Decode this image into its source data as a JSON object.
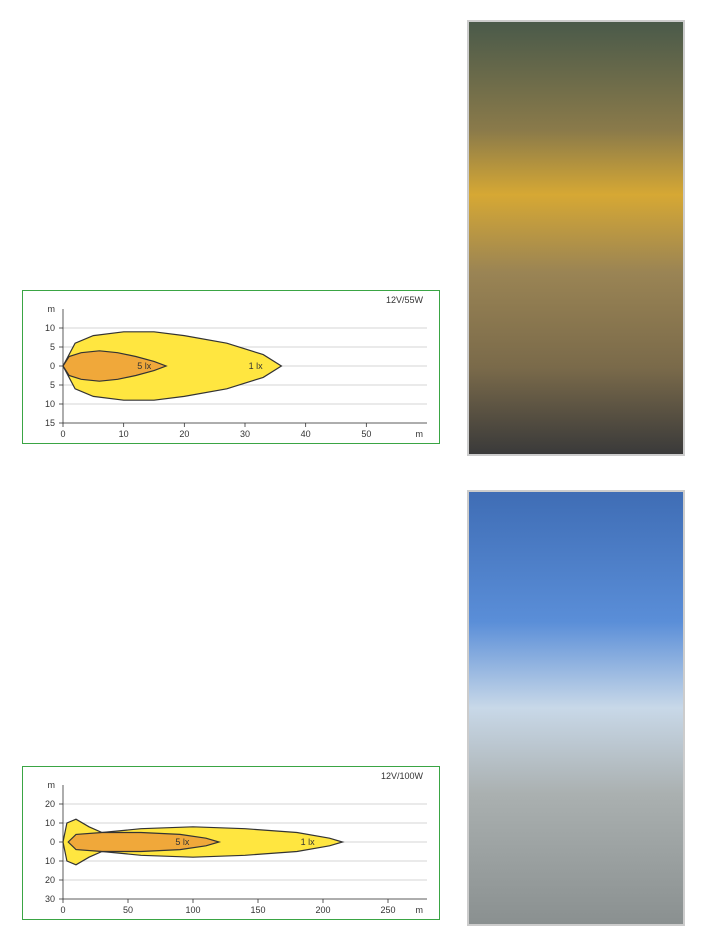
{
  "chart1": {
    "type": "beam-distribution",
    "title": "12V/55W",
    "x_unit": "m",
    "y_unit": "m",
    "xlim": [
      0,
      60
    ],
    "ylim": [
      -15,
      15
    ],
    "xticks": [
      0,
      10,
      20,
      30,
      40,
      50
    ],
    "yticks": [
      -15,
      -10,
      -5,
      0,
      5,
      10
    ],
    "yticklabels": [
      "15",
      "10",
      "5",
      "0",
      "5",
      "10"
    ],
    "y_axis_top_label": "m",
    "border_color": "#3aa544",
    "background_color": "#ffffff",
    "outer_beam": {
      "label": "1 lx",
      "label_pos": "right",
      "fill": "#ffe640",
      "stroke": "#333333",
      "points": [
        [
          0,
          0
        ],
        [
          2,
          6
        ],
        [
          5,
          8
        ],
        [
          10,
          9
        ],
        [
          15,
          9
        ],
        [
          20,
          8
        ],
        [
          27,
          6
        ],
        [
          33,
          3
        ],
        [
          36,
          0
        ],
        [
          33,
          -3
        ],
        [
          27,
          -6
        ],
        [
          20,
          -8
        ],
        [
          15,
          -9
        ],
        [
          10,
          -9
        ],
        [
          5,
          -8
        ],
        [
          2,
          -6
        ]
      ]
    },
    "inner_beam": {
      "label": "5 lx",
      "label_pos": "mid",
      "fill": "#f0a83a",
      "stroke": "#333333",
      "points": [
        [
          0,
          0
        ],
        [
          1,
          2.5
        ],
        [
          3,
          3.5
        ],
        [
          6,
          4
        ],
        [
          9,
          3.5
        ],
        [
          12,
          2.5
        ],
        [
          15,
          1.2
        ],
        [
          17,
          0
        ],
        [
          15,
          -1.2
        ],
        [
          12,
          -2.5
        ],
        [
          9,
          -3.5
        ],
        [
          6,
          -4
        ],
        [
          3,
          -3.5
        ],
        [
          1,
          -2.5
        ]
      ]
    },
    "tick_fontsize": 9,
    "title_fontsize": 9
  },
  "chart2": {
    "type": "beam-distribution",
    "title": "12V/100W",
    "x_unit": "m",
    "y_unit": "m",
    "xlim": [
      0,
      280
    ],
    "ylim": [
      -30,
      30
    ],
    "xticks": [
      0,
      50,
      100,
      150,
      200,
      250
    ],
    "yticks": [
      -30,
      -20,
      -10,
      0,
      10,
      20
    ],
    "yticklabels": [
      "30",
      "20",
      "10",
      "0",
      "10",
      "20"
    ],
    "y_axis_top_label": "m",
    "border_color": "#3aa544",
    "background_color": "#ffffff",
    "outer_beam": {
      "label": "1 lx",
      "label_pos": "right",
      "fill": "#ffe640",
      "stroke": "#333333",
      "points": [
        [
          0,
          0
        ],
        [
          3,
          10
        ],
        [
          10,
          12
        ],
        [
          20,
          8
        ],
        [
          30,
          5
        ],
        [
          60,
          7
        ],
        [
          100,
          8
        ],
        [
          140,
          7
        ],
        [
          180,
          5
        ],
        [
          205,
          2
        ],
        [
          215,
          0
        ],
        [
          205,
          -2
        ],
        [
          180,
          -5
        ],
        [
          140,
          -7
        ],
        [
          100,
          -8
        ],
        [
          60,
          -7
        ],
        [
          30,
          -5
        ],
        [
          20,
          -8
        ],
        [
          10,
          -12
        ],
        [
          3,
          -10
        ]
      ]
    },
    "inner_beam": {
      "label": "5 lx",
      "label_pos": "mid",
      "fill": "#f0a83a",
      "stroke": "#333333",
      "points": [
        [
          4,
          0
        ],
        [
          10,
          4
        ],
        [
          30,
          5
        ],
        [
          60,
          5
        ],
        [
          90,
          4
        ],
        [
          110,
          2
        ],
        [
          120,
          0
        ],
        [
          110,
          -2
        ],
        [
          90,
          -4
        ],
        [
          60,
          -5
        ],
        [
          30,
          -5
        ],
        [
          10,
          -4
        ]
      ]
    },
    "tick_fontsize": 9,
    "title_fontsize": 9
  }
}
